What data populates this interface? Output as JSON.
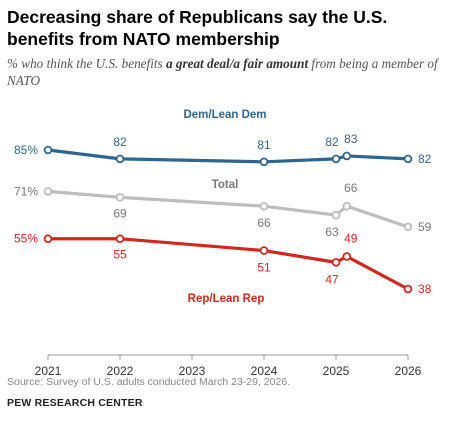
{
  "header": {
    "title": "Decreasing share of Republicans say the U.S. benefits from NATO membership",
    "subtitle_pre": "% who think the U.S. benefits ",
    "subtitle_bold": "a great deal/a fair amount",
    "subtitle_post": " from being a member of NATO"
  },
  "footer": {
    "source": "Source: Survey of U.S. adults conducted March 23-29, 2026.",
    "brand": "PEW RESEARCH CENTER"
  },
  "chart_data": {
    "type": "line",
    "x_ticks": [
      2021,
      2022,
      2023,
      2024,
      2025,
      2026
    ],
    "xlim": [
      2021,
      2026
    ],
    "ylim": [
      30,
      95
    ],
    "grid": false,
    "series": [
      {
        "name": "Dem/Lean Dem",
        "color": "#2f6690",
        "x": [
          2021,
          2022,
          2024,
          2025,
          2025.15,
          2026
        ],
        "values": [
          85,
          82,
          81,
          82,
          83,
          82
        ],
        "labels": [
          "85%",
          "82",
          "81",
          "82",
          "83",
          "82"
        ]
      },
      {
        "name": "Total",
        "color": "#bdbdbd",
        "label_color": "#777777",
        "x": [
          2021,
          2022,
          2024,
          2025,
          2025.15,
          2026
        ],
        "values": [
          71,
          69,
          66,
          63,
          66,
          59
        ],
        "labels": [
          "71%",
          "69",
          "66",
          "63",
          "66",
          "59"
        ]
      },
      {
        "name": "Rep/Lean Rep",
        "color": "#d0281e",
        "x": [
          2021,
          2022,
          2024,
          2025,
          2025.15,
          2026
        ],
        "values": [
          55,
          55,
          51,
          47,
          49,
          38
        ],
        "labels": [
          "55%",
          "55",
          "51",
          "47",
          "49",
          "38"
        ]
      }
    ]
  }
}
